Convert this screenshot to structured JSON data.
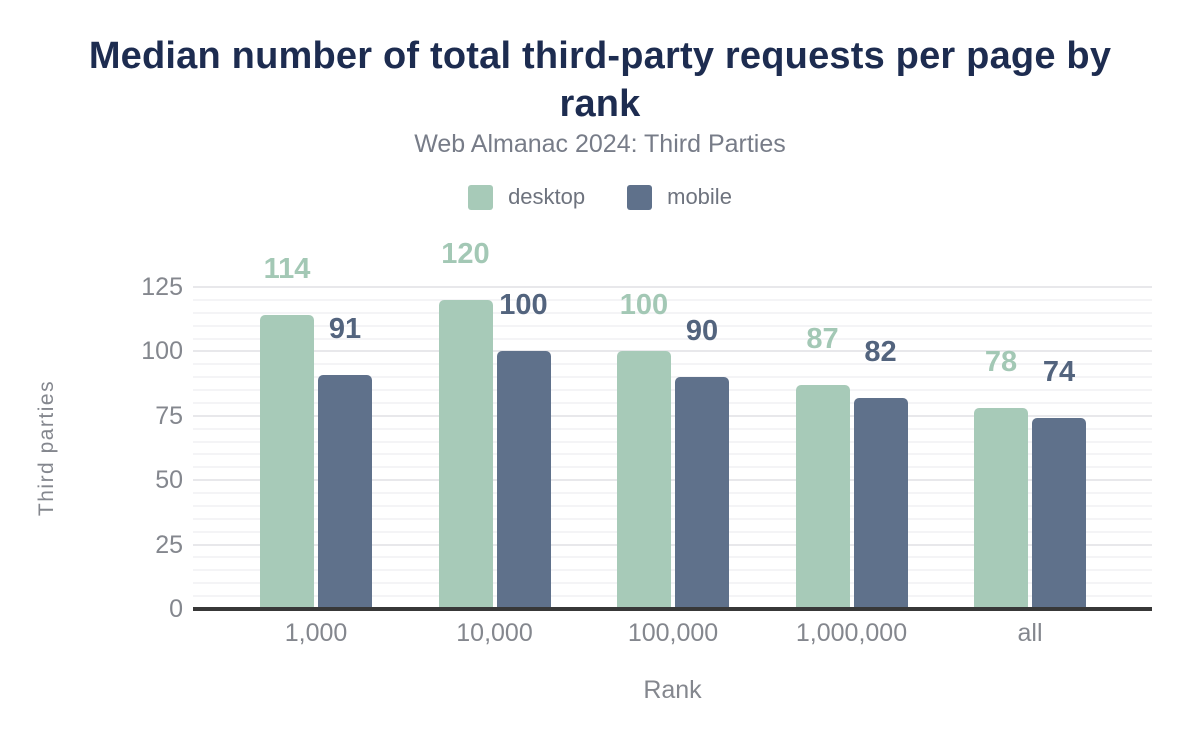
{
  "page": {
    "background": "#ffffff"
  },
  "chart_data": {
    "type": "bar",
    "title": "Median number of total third-party requests per page by rank",
    "subtitle": "Web Almanac 2024: Third Parties",
    "categories": [
      "1,000",
      "10,000",
      "100,000",
      "1,000,000",
      "all"
    ],
    "series": [
      {
        "name": "desktop",
        "color": "#a7cab8",
        "label_color": "#a3c8b5",
        "values": [
          114,
          120,
          100,
          87,
          78
        ]
      },
      {
        "name": "mobile",
        "color": "#5f718b",
        "label_color": "#53647e",
        "values": [
          91,
          100,
          90,
          82,
          74
        ]
      }
    ],
    "xlabel": "Rank",
    "ylabel": "Third parties",
    "ylim": [
      0,
      125
    ],
    "yticks": [
      0,
      25,
      50,
      75,
      100,
      125
    ],
    "minor_grid_step": 5,
    "major_grid_step": 25,
    "grid": "horizontal",
    "legend_position": "top",
    "colors": {
      "title": "#1d2c50",
      "subtitle": "#777c88",
      "legend_text": "#6e737e",
      "axis_text": "#84878e",
      "axis_line": "#383838",
      "grid_major": "#e8e8eb",
      "grid_minor": "#f4f4f6"
    }
  }
}
